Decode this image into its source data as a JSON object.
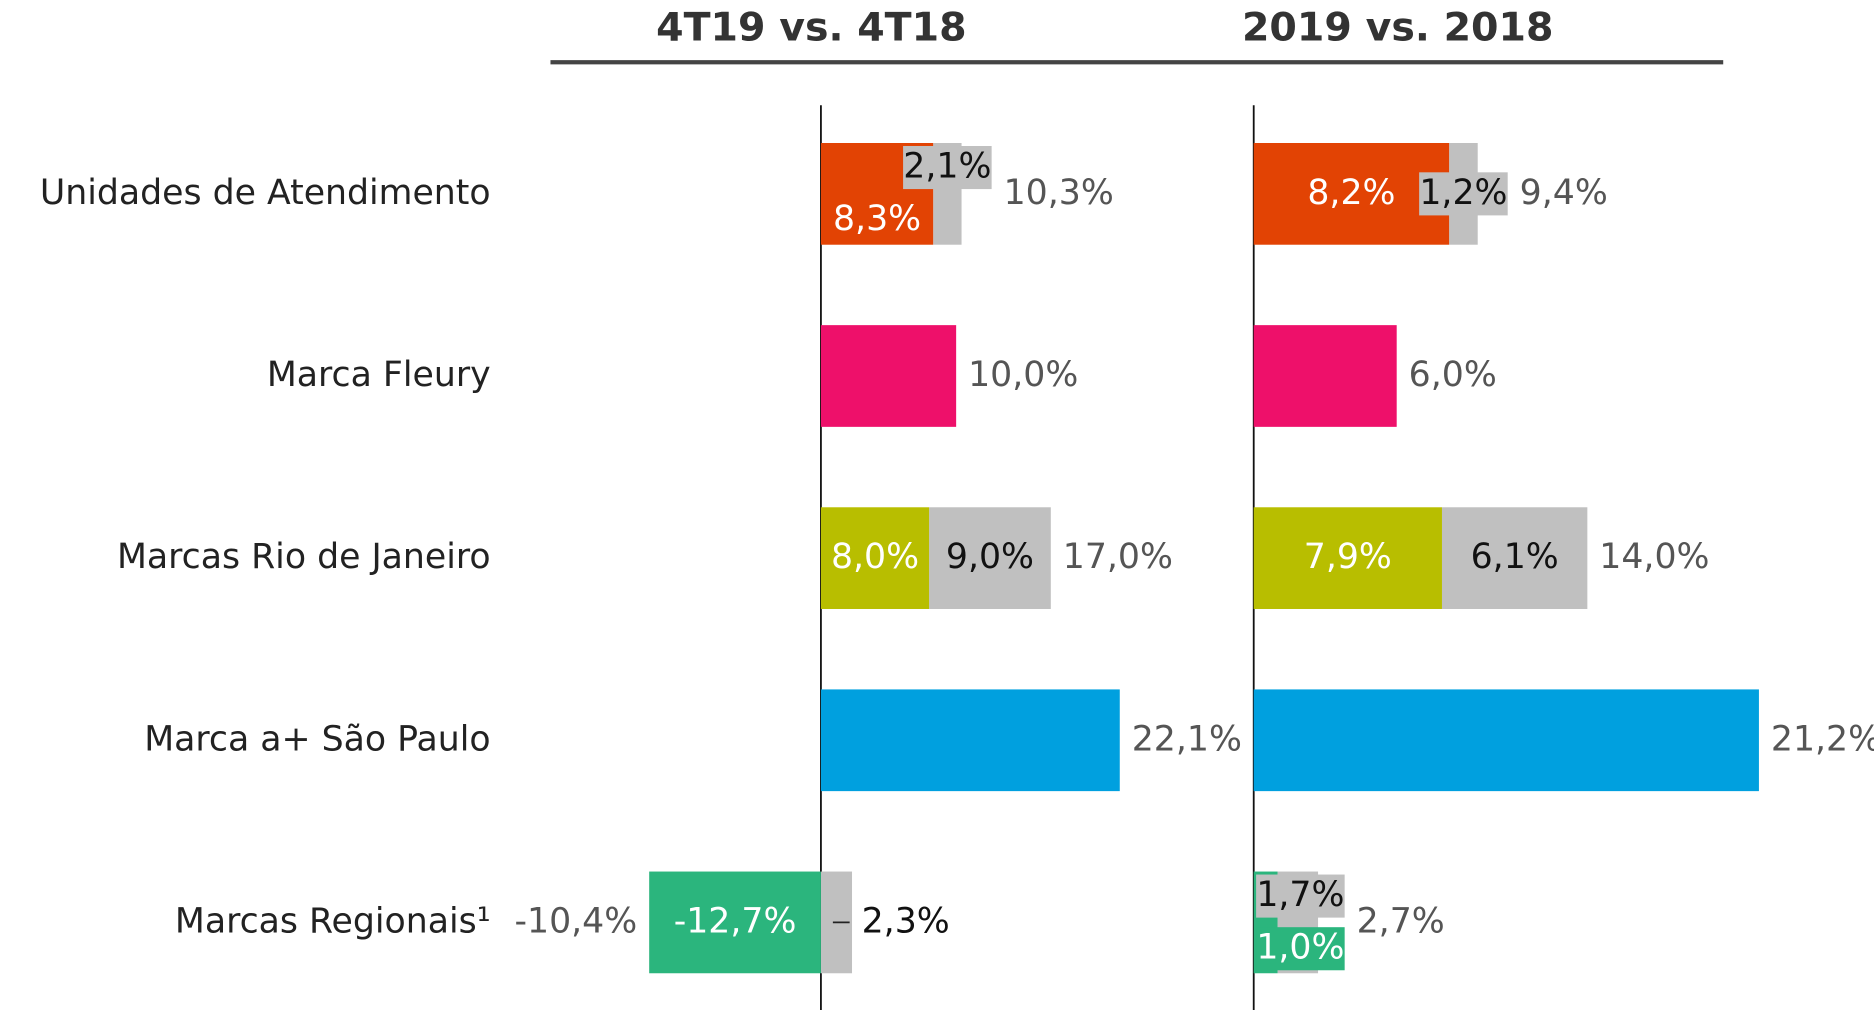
{
  "chart_data": [
    {
      "type": "bar",
      "title": "4T19 vs. 4T18",
      "categories": [
        "Unidades de Atendimento",
        "Marca Fleury",
        "Marcas Rio de Janeiro",
        "Marca a+ São Paulo",
        "Marcas Regionais¹"
      ],
      "xlim": [
        -20,
        25
      ],
      "series": [
        {
          "colors": [
            "#e24304",
            "#ee106a",
            "#b8be00",
            "#00a0df",
            "#2bb57d"
          ],
          "values": [
            8.3,
            10.0,
            8.0,
            22.1,
            -12.7
          ],
          "value_labels": [
            "8,3%",
            null,
            "8,0%",
            null,
            "-12,7%"
          ]
        },
        {
          "color": "#c0c0c0",
          "values": [
            2.1,
            null,
            9.0,
            null,
            2.3
          ],
          "value_labels": [
            "2,1%",
            null,
            "9,0%",
            null,
            "2,3%"
          ]
        }
      ],
      "totals": {
        "values": [
          10.3,
          10.0,
          17.0,
          22.1,
          -10.4
        ],
        "value_labels": [
          "10,3%",
          "10,0%",
          "17,0%",
          "22,1%",
          "-10,4%"
        ]
      }
    },
    {
      "type": "bar",
      "title": "2019 vs. 2018",
      "xlim": [
        -4,
        24
      ],
      "series": [
        {
          "colors": [
            "#e24304",
            "#ee106a",
            "#b8be00",
            "#00a0df",
            "#2bb57d"
          ],
          "values": [
            8.2,
            6.0,
            7.9,
            21.2,
            1.0
          ],
          "value_labels": [
            "8,2%",
            null,
            "7,9%",
            null,
            "1,0%"
          ]
        },
        {
          "color": "#c0c0c0",
          "values": [
            1.2,
            null,
            6.1,
            null,
            1.7
          ],
          "value_labels": [
            "1,2%",
            null,
            "6,1%",
            null,
            "1,7%"
          ]
        }
      ],
      "totals": {
        "values": [
          9.4,
          6.0,
          14.0,
          21.2,
          2.7
        ],
        "value_labels": [
          "9,4%",
          "6,0%",
          "14,0%",
          "21,2%",
          "2,7%"
        ]
      }
    }
  ]
}
